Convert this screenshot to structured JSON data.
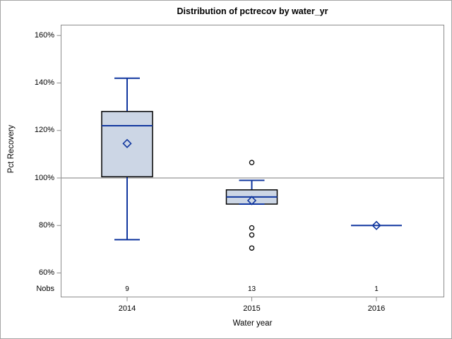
{
  "window": {
    "background": "#ffffff",
    "border_color": "#a6a6a6"
  },
  "chart_data": {
    "type": "box",
    "title": "Distribution of pctrecov by water_yr",
    "xlabel": "Water year",
    "ylabel": "Pct Recovery",
    "nobs_row_label": "Nobs",
    "categories": [
      "2014",
      "2015",
      "2016"
    ],
    "nobs": [
      "9",
      "13",
      "1"
    ],
    "yticks": [
      {
        "value": 60,
        "label": "60%"
      },
      {
        "value": 80,
        "label": "80%"
      },
      {
        "value": 100,
        "label": "100%"
      },
      {
        "value": 120,
        "label": "120%"
      },
      {
        "value": 140,
        "label": "140%"
      },
      {
        "value": 160,
        "label": "160%"
      }
    ],
    "ylim": [
      50,
      164.5
    ],
    "reference_line_value": 100,
    "grid": "off",
    "series": [
      {
        "category": "2014",
        "nobs": 9,
        "whisker_low": 74,
        "q1": 100.5,
        "median": 122,
        "q3": 128,
        "whisker_high": 142,
        "mean": 114.5,
        "outliers": []
      },
      {
        "category": "2015",
        "nobs": 13,
        "whisker_low": 89,
        "q1": 89,
        "median": 92,
        "q3": 95,
        "whisker_high": 99,
        "mean": 90.5,
        "outliers": [
          106.5,
          79,
          76,
          70.5
        ]
      },
      {
        "category": "2016",
        "nobs": 1,
        "whisker_low": 80,
        "q1": 80,
        "median": 80,
        "q3": 80,
        "whisker_high": 80,
        "mean": 80,
        "outliers": []
      }
    ],
    "colors": {
      "box_fill": "#ccd6e5",
      "box_stroke": "#000000",
      "blue_line": "#11379f",
      "frame_gray": "#8c8c8c",
      "reference_line_gray": "#a8a8a8",
      "outlier_stroke": "#000000",
      "text": "#000000"
    }
  }
}
